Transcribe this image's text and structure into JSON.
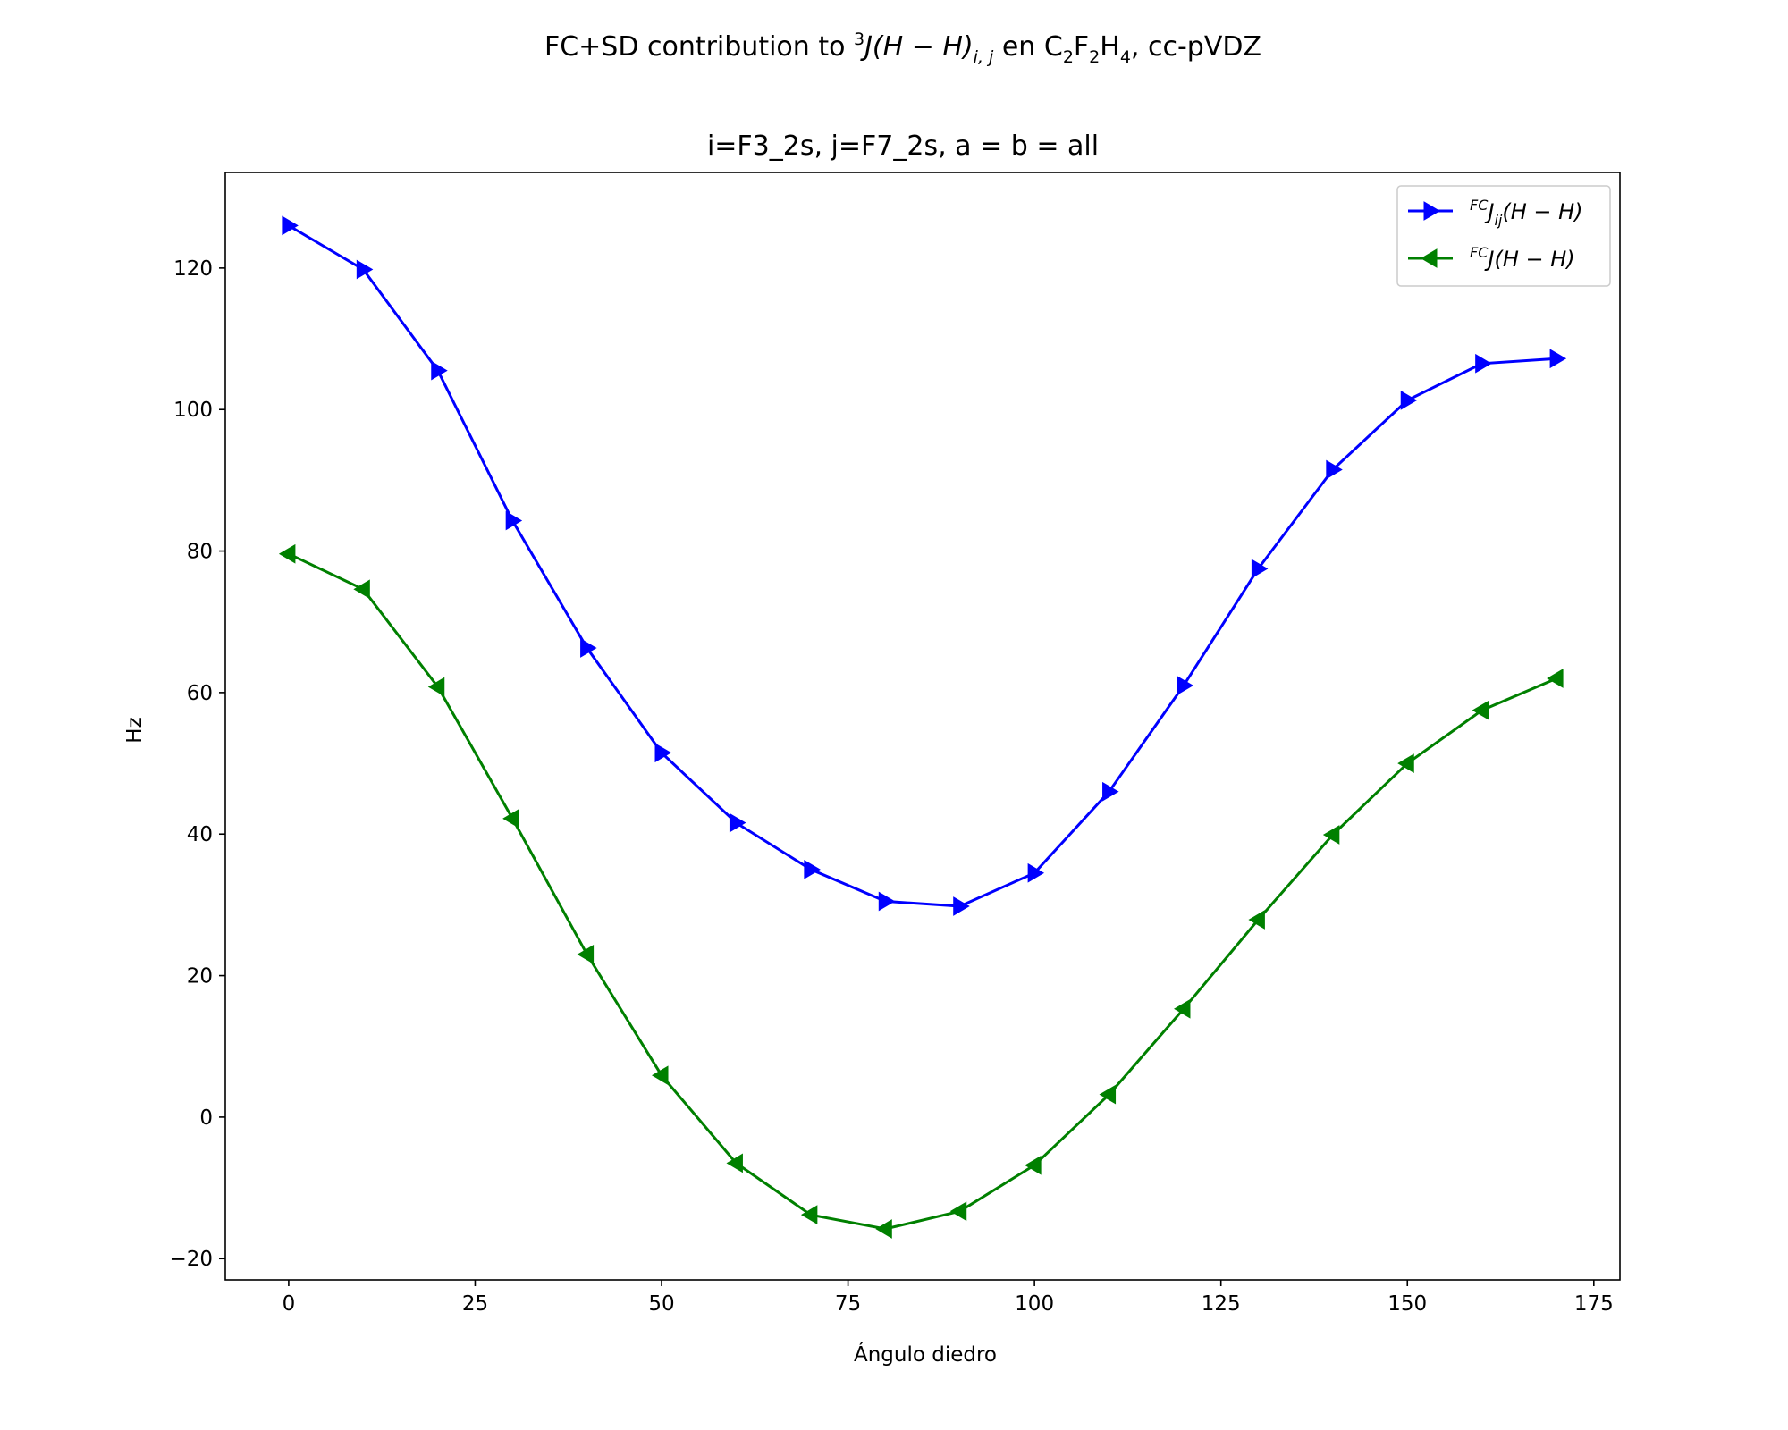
{
  "chart_data": {
    "type": "line",
    "title": {
      "pre": "FC+SD contribution to ",
      "sup": "3",
      "math": "J(H − H)",
      "sub": "i, j",
      "post_pre": " en C",
      "s1": "2",
      "f": "F",
      "s2": "2",
      "h": "H",
      "s3": "4",
      "tail": ", cc-pVDZ"
    },
    "subtitle": "i=F3_2s, j=F7_2s, a = b = all",
    "xlabel": "Ángulo diedro",
    "ylabel": "Hz",
    "xlim": [
      -8.5,
      178.5
    ],
    "ylim": [
      -23,
      133.5
    ],
    "xticks": [
      0,
      25,
      50,
      75,
      100,
      125,
      150,
      175
    ],
    "yticks": [
      -20,
      0,
      20,
      40,
      60,
      80,
      100,
      120
    ],
    "grid": false,
    "legend_position": "top-right",
    "x": [
      0,
      10,
      20,
      30,
      40,
      50,
      60,
      70,
      80,
      90,
      100,
      110,
      120,
      130,
      140,
      150,
      160,
      170
    ],
    "series": [
      {
        "name": "FCJij(H − H)",
        "legend": {
          "sup": "FC",
          "base": "J",
          "sub": "ij",
          "rest": "(H − H)"
        },
        "color": "#0000ff",
        "marker": "triangle-right",
        "values": [
          126.0,
          119.8,
          105.5,
          84.3,
          66.3,
          51.5,
          41.6,
          35.0,
          30.5,
          29.8,
          34.5,
          46.0,
          61.0,
          77.5,
          91.5,
          101.3,
          106.5,
          107.2
        ]
      },
      {
        "name": "FCJ(H − H)",
        "legend": {
          "sup": "FC",
          "base": "J",
          "sub": "",
          "rest": "(H − H)"
        },
        "color": "#008000",
        "marker": "triangle-left",
        "values": [
          79.6,
          74.6,
          60.8,
          42.2,
          23.0,
          5.9,
          -6.5,
          -13.8,
          -15.8,
          -13.3,
          -6.8,
          3.2,
          15.3,
          27.9,
          39.9,
          50.0,
          57.5,
          62.0
        ]
      }
    ]
  }
}
